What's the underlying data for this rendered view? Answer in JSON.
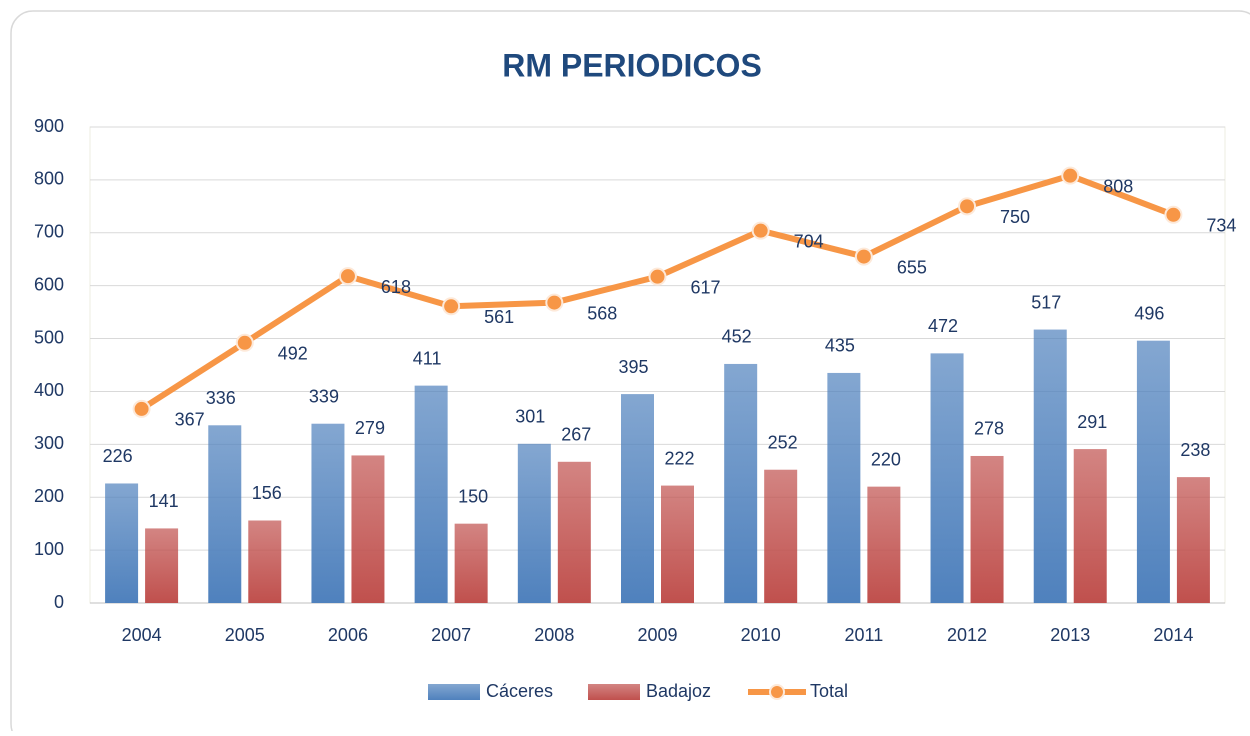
{
  "chart_data": {
    "type": "bar",
    "title": "RM PERIODICOS",
    "categories": [
      "2004",
      "2005",
      "2006",
      "2007",
      "2008",
      "2009",
      "2010",
      "2011",
      "2012",
      "2013",
      "2014"
    ],
    "series": [
      {
        "name": "Cáceres",
        "type": "bar",
        "color": "#4f81bd",
        "values": [
          226,
          336,
          339,
          411,
          301,
          395,
          452,
          435,
          472,
          517,
          496
        ]
      },
      {
        "name": "Badajoz",
        "type": "bar",
        "color": "#c0504d",
        "values": [
          141,
          156,
          279,
          150,
          267,
          222,
          252,
          220,
          278,
          291,
          238
        ]
      },
      {
        "name": "Total",
        "type": "line",
        "color": "#f79646",
        "values": [
          367,
          492,
          618,
          561,
          568,
          617,
          704,
          655,
          750,
          808,
          734
        ]
      }
    ],
    "ylim": [
      0,
      900
    ],
    "yticks": [
      0,
      100,
      200,
      300,
      400,
      500,
      600,
      700,
      800,
      900
    ],
    "grid": true,
    "legend": "bottom"
  }
}
